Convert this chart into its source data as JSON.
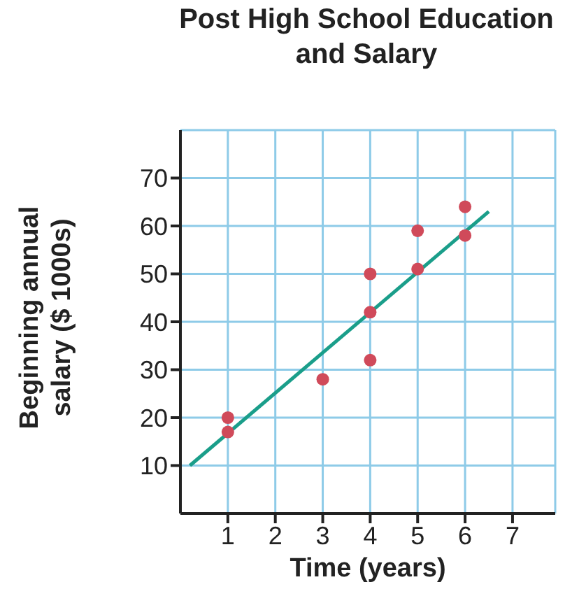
{
  "chart_data": {
    "type": "scatter",
    "title": "Post High School Education and Salary",
    "xlabel": "Time (years)",
    "ylabel": "Beginning annual salary ($ 1000s)",
    "series": [
      {
        "color": "#d04a5a",
        "marker": "circle",
        "x": [
          1,
          1,
          3,
          4,
          4,
          4,
          5,
          5,
          6,
          6
        ],
        "values": [
          20,
          17,
          28,
          50,
          42,
          32,
          59,
          51,
          64,
          58
        ]
      },
      {
        "type": "line",
        "color": "#1a9e8a",
        "marker": "none",
        "x": [
          0.2,
          6.5
        ],
        "values": [
          10,
          63
        ]
      }
    ],
    "xlim": [
      0,
      7.9
    ],
    "ylim": [
      0,
      80
    ],
    "xticks": [
      1,
      2,
      3,
      4,
      5,
      6,
      7
    ],
    "yticks": [
      10,
      20,
      30,
      40,
      50,
      60,
      70
    ],
    "grid": true,
    "legend": false
  }
}
